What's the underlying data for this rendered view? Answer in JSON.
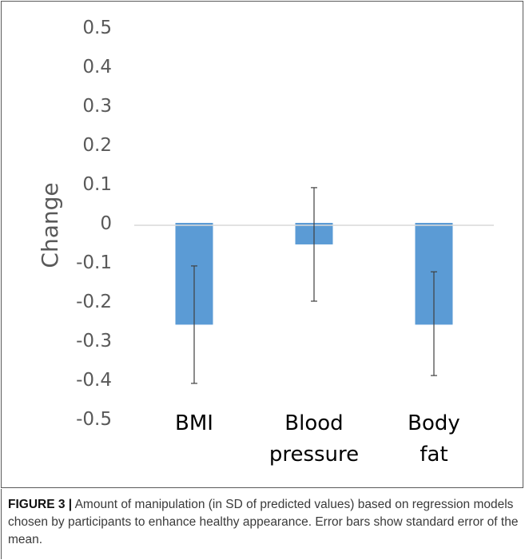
{
  "chart_data": {
    "type": "bar",
    "title": "",
    "xlabel": "",
    "ylabel": "Change",
    "ylim": [
      -0.5,
      0.5
    ],
    "yticks": [
      "0.5",
      "0.4",
      "0.3",
      "0.2",
      "0.1",
      "0",
      "-0.1",
      "-0.2",
      "-0.3",
      "-0.4",
      "-0.5"
    ],
    "ytick_values": [
      0.5,
      0.4,
      0.3,
      0.2,
      0.1,
      0,
      -0.1,
      -0.2,
      -0.3,
      -0.4,
      -0.5
    ],
    "categories": [
      [
        "BMI"
      ],
      [
        "Blood",
        "pressure"
      ],
      [
        "Body",
        "fat"
      ]
    ],
    "values": [
      -0.26,
      -0.055,
      -0.26
    ],
    "error_low": [
      -0.41,
      -0.2,
      -0.39
    ],
    "error_high": [
      -0.11,
      0.09,
      -0.125
    ],
    "bar_color": "#5b9bd5",
    "grid": false,
    "legend": "none"
  },
  "caption": {
    "lead": "FIGURE 3 |",
    "text": " Amount of manipulation (in SD of predicted values) based on regression models chosen by participants to enhance healthy appearance. Error bars show standard error of the mean."
  }
}
